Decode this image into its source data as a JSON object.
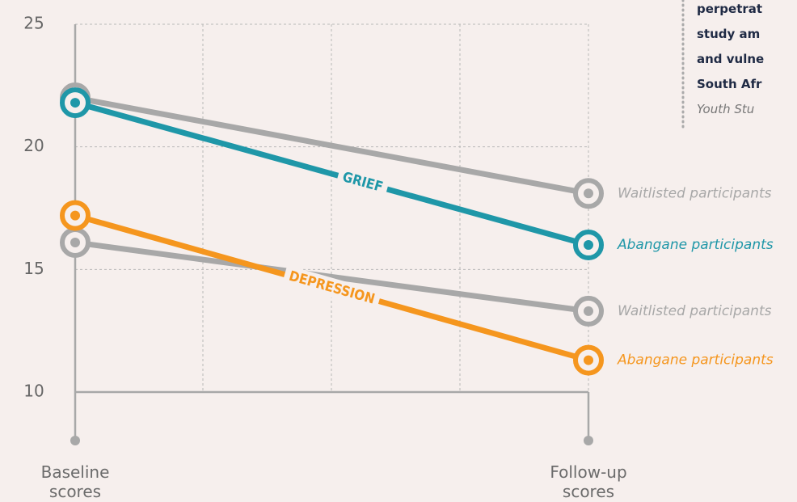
{
  "chart_data": {
    "type": "line",
    "categories": [
      "Baseline scores",
      "Follow-up scores"
    ],
    "ylim": [
      10,
      25
    ],
    "yticks": [
      10,
      15,
      20,
      25
    ],
    "grid": true,
    "line_labels": [
      "GRIEF",
      "DEPRESSION"
    ],
    "series": [
      {
        "name": "Waitlisted participants",
        "color": "#a8a8a8",
        "values": [
          22.0,
          18.1
        ],
        "group": 0
      },
      {
        "name": "Abangane participants",
        "color": "#1f97a8",
        "values": [
          21.8,
          16.0
        ],
        "group": 0
      },
      {
        "name": "Waitlisted participants",
        "color": "#a8a8a8",
        "values": [
          16.1,
          13.3
        ],
        "group": 1
      },
      {
        "name": "Abangane participants",
        "color": "#f5961e",
        "values": [
          17.2,
          11.3
        ],
        "group": 1
      }
    ]
  },
  "side_note": [
    "perpetrat",
    "study am",
    "and vulne",
    "South Afr",
    "Youth Stu"
  ]
}
